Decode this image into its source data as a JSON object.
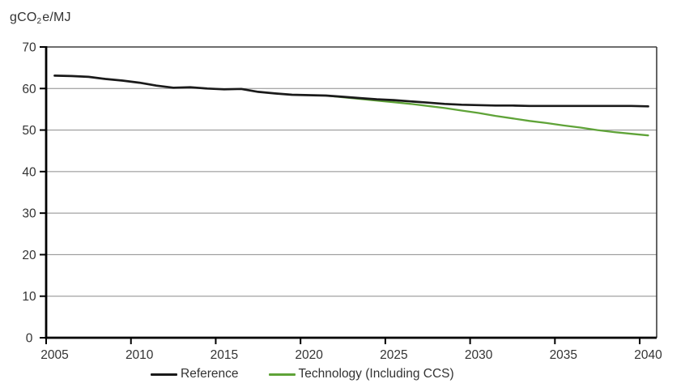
{
  "header": {
    "y_axis_unit": {
      "prefix": "gCO",
      "sub": "2",
      "suffix": "e/MJ"
    }
  },
  "chart_data": {
    "type": "line",
    "title": "",
    "ylabel": "gCO2e/MJ",
    "xlabel": "",
    "ylim": [
      0,
      70
    ],
    "y_ticks": [
      0,
      10,
      20,
      30,
      40,
      50,
      60,
      70
    ],
    "x_ticks": [
      2005,
      2010,
      2015,
      2020,
      2025,
      2030,
      2035,
      2040
    ],
    "grid": "horizontal-only",
    "legend_position": "bottom-center",
    "x": [
      2005,
      2006,
      2007,
      2008,
      2009,
      2010,
      2011,
      2012,
      2013,
      2014,
      2015,
      2016,
      2017,
      2018,
      2019,
      2020,
      2021,
      2022,
      2023,
      2024,
      2025,
      2026,
      2027,
      2028,
      2029,
      2030,
      2031,
      2032,
      2033,
      2034,
      2035,
      2036,
      2037,
      2038,
      2039,
      2040
    ],
    "series": [
      {
        "id": "reference",
        "name": "Reference",
        "color": "#1A1A1A",
        "values": [
          63.1,
          63.0,
          62.8,
          62.3,
          61.9,
          61.4,
          60.7,
          60.2,
          60.3,
          60.0,
          59.8,
          59.9,
          59.2,
          58.8,
          58.5,
          58.4,
          58.3,
          58.0,
          57.7,
          57.4,
          57.2,
          56.9,
          56.6,
          56.3,
          56.1,
          56.0,
          55.9,
          55.9,
          55.8,
          55.8,
          55.8,
          55.8,
          55.8,
          55.8,
          55.8,
          55.7
        ]
      },
      {
        "id": "technology",
        "name": "Technology (Including CCS)",
        "color": "#5FA338",
        "values": [
          null,
          null,
          null,
          null,
          null,
          null,
          null,
          null,
          null,
          null,
          null,
          null,
          null,
          null,
          null,
          null,
          58.3,
          57.9,
          57.5,
          57.1,
          56.7,
          56.3,
          55.8,
          55.3,
          54.7,
          54.1,
          53.4,
          52.8,
          52.2,
          51.7,
          51.1,
          50.6,
          50.0,
          49.5,
          49.1,
          48.7
        ]
      }
    ],
    "colors": {
      "gridline": "#8C8C8C",
      "frame": "#3D3D3D",
      "axis": "#000000",
      "text": "#333333"
    }
  }
}
